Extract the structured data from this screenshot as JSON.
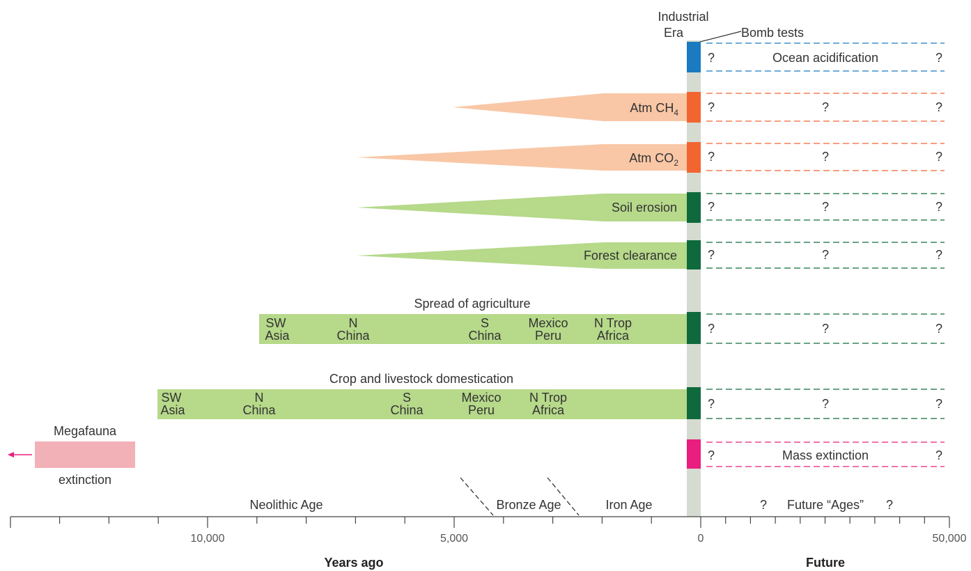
{
  "colors": {
    "ocean": "#1a7bc1",
    "atm": "#f26531",
    "atm_wedge": "#f9c7a6",
    "land": "#0e6a3c",
    "land_fill": "#b6d98a",
    "extinction": "#e91e7e",
    "megafauna": "#f2b1b7",
    "industrial_bar": "#d5dbd0",
    "axis": "#444444"
  },
  "header": {
    "industrial_line1": "Industrial",
    "industrial_line2": "Era",
    "bomb_tests": "Bomb tests"
  },
  "rows": {
    "ocean": {
      "label": "Ocean acidification",
      "q_left": "?",
      "q_right": "?"
    },
    "ch4": {
      "label_main": "Atm CH",
      "label_sub": "4",
      "q_left": "?",
      "q_mid": "?",
      "q_right": "?"
    },
    "co2": {
      "label_main": "Atm CO",
      "label_sub": "2",
      "q_left": "?",
      "q_mid": "?",
      "q_right": "?"
    },
    "soil": {
      "label": "Soil erosion",
      "q_left": "?",
      "q_mid": "?",
      "q_right": "?"
    },
    "forest": {
      "label": "Forest clearance",
      "q_left": "?",
      "q_mid": "?",
      "q_right": "?"
    },
    "agri": {
      "title": "Spread of agriculture",
      "regions": [
        {
          "l1": "SW",
          "l2": "Asia"
        },
        {
          "l1": "N",
          "l2": "China"
        },
        {
          "l1": "S",
          "l2": "China"
        },
        {
          "l1": "Mexico",
          "l2": "Peru"
        },
        {
          "l1": "N Trop",
          "l2": "Africa"
        }
      ],
      "q_left": "?",
      "q_mid": "?",
      "q_right": "?"
    },
    "domestic": {
      "title": "Crop and livestock domestication",
      "regions": [
        {
          "l1": "SW",
          "l2": "Asia"
        },
        {
          "l1": "N",
          "l2": "China"
        },
        {
          "l1": "S",
          "l2": "China"
        },
        {
          "l1": "Mexico",
          "l2": "Peru"
        },
        {
          "l1": "N Trop",
          "l2": "Africa"
        }
      ],
      "q_left": "?",
      "q_mid": "?",
      "q_right": "?"
    },
    "mass": {
      "label": "Mass extinction",
      "q_left": "?",
      "q_right": "?"
    },
    "megafauna": {
      "label_top": "Megafauna",
      "label_bottom": "extinction"
    }
  },
  "ages": {
    "neolithic": "Neolithic Age",
    "bronze": "Bronze Age",
    "iron": "Iron Age",
    "future": "Future “Ages”",
    "future_q_left": "?",
    "future_q_right": "?"
  },
  "axis": {
    "tick_10000": "10,000",
    "tick_5000": "5,000",
    "tick_0": "0",
    "tick_50000": "50,000",
    "left_title": "Years ago",
    "right_title": "Future"
  }
}
